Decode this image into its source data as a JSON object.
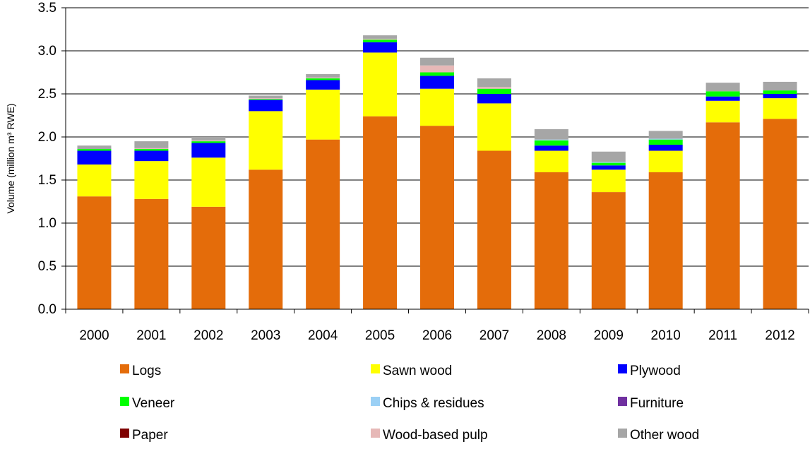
{
  "chart_data": {
    "type": "bar",
    "stacked": true,
    "title": "",
    "xlabel": "",
    "ylabel": "Volume (million m³ RWE)",
    "ylim": [
      0,
      3.5
    ],
    "yticks": [
      "0.0",
      "0.5",
      "1.0",
      "1.5",
      "2.0",
      "2.5",
      "3.0",
      "3.5"
    ],
    "grid": true,
    "legend_position": "bottom",
    "categories": [
      "2000",
      "2001",
      "2002",
      "2003",
      "2004",
      "2005",
      "2006",
      "2007",
      "2008",
      "2009",
      "2010",
      "2011",
      "2012"
    ],
    "series": [
      {
        "name": "Logs",
        "color": "#E46C0A",
        "values": [
          1.31,
          1.28,
          1.19,
          1.62,
          1.97,
          2.24,
          2.13,
          1.84,
          1.59,
          1.36,
          1.59,
          2.17,
          2.21
        ]
      },
      {
        "name": "Sawn wood",
        "color": "#FFFF00",
        "values": [
          0.37,
          0.44,
          0.57,
          0.68,
          0.58,
          0.74,
          0.43,
          0.55,
          0.25,
          0.26,
          0.25,
          0.25,
          0.24
        ]
      },
      {
        "name": "Plywood",
        "color": "#0000FF",
        "values": [
          0.16,
          0.12,
          0.17,
          0.13,
          0.11,
          0.12,
          0.15,
          0.11,
          0.06,
          0.05,
          0.07,
          0.05,
          0.05
        ]
      },
      {
        "name": "Veneer",
        "color": "#00FF00",
        "values": [
          0.02,
          0.02,
          0.02,
          0.01,
          0.02,
          0.03,
          0.04,
          0.06,
          0.06,
          0.03,
          0.06,
          0.06,
          0.04
        ]
      },
      {
        "name": "Chips & residues",
        "color": "#9BD0F5",
        "values": [
          0.0,
          0.0,
          0.0,
          0.0,
          0.0,
          0.0,
          0.0,
          0.0,
          0.01,
          0.01,
          0.01,
          0.0,
          0.0
        ]
      },
      {
        "name": "Furniture",
        "color": "#7030A0",
        "values": [
          0.0,
          0.0,
          0.0,
          0.0,
          0.0,
          0.0,
          0.0,
          0.0,
          0.0,
          0.0,
          0.0,
          0.0,
          0.0
        ]
      },
      {
        "name": "Paper",
        "color": "#7F0000",
        "values": [
          0.0,
          0.0,
          0.0,
          0.0,
          0.0,
          0.0,
          0.0,
          0.0,
          0.0,
          0.0,
          0.0,
          0.0,
          0.0
        ]
      },
      {
        "name": "Wood-based pulp",
        "color": "#E6B8B7",
        "values": [
          0.0,
          0.01,
          0.01,
          0.01,
          0.01,
          0.01,
          0.08,
          0.02,
          0.0,
          0.0,
          0.0,
          0.0,
          0.0
        ]
      },
      {
        "name": "Other wood",
        "color": "#A6A6A6",
        "values": [
          0.04,
          0.08,
          0.04,
          0.03,
          0.04,
          0.04,
          0.09,
          0.1,
          0.12,
          0.12,
          0.09,
          0.1,
          0.1
        ]
      }
    ]
  }
}
